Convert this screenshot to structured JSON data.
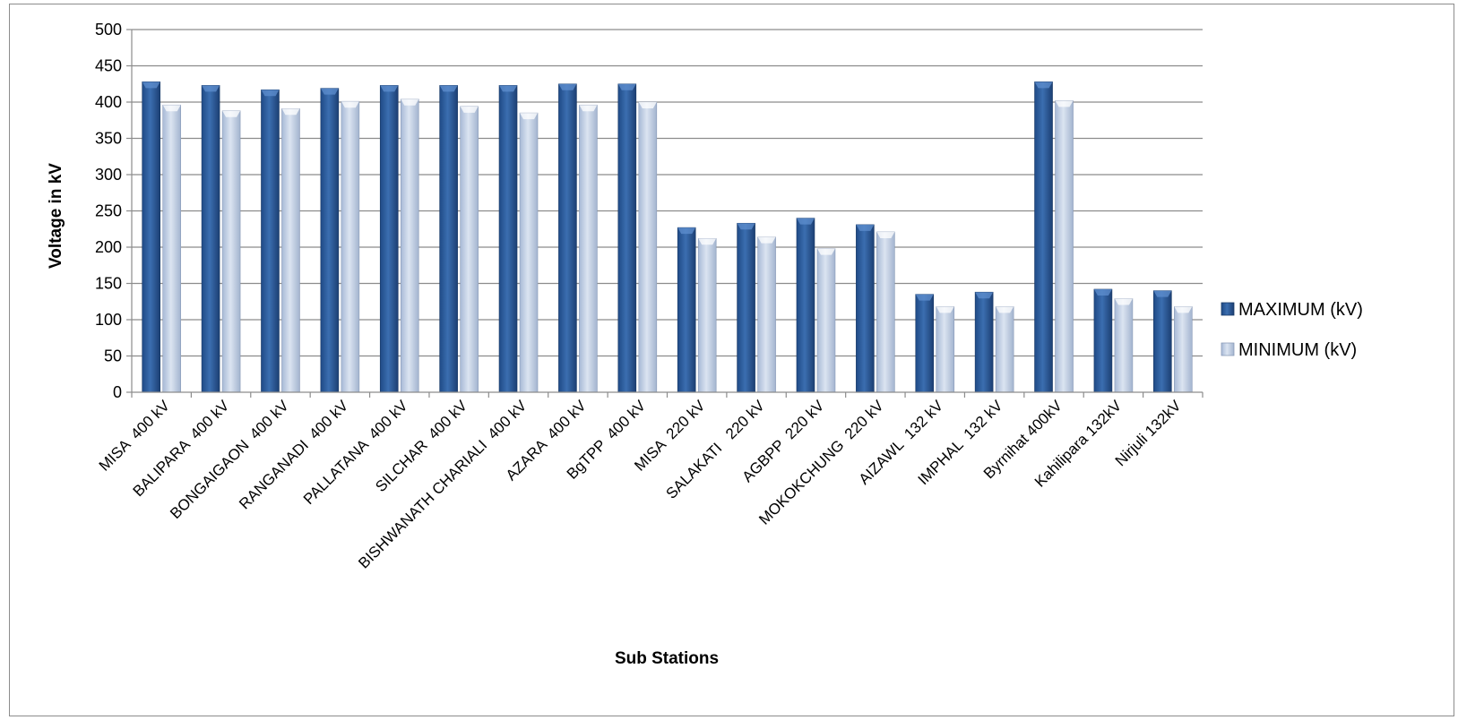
{
  "chart_data": {
    "type": "bar",
    "title": "",
    "xlabel": "Sub Stations",
    "ylabel": "Voltage in kV",
    "ylim": [
      0,
      500
    ],
    "yticks": [
      0,
      50,
      100,
      150,
      200,
      250,
      300,
      350,
      400,
      450,
      500
    ],
    "grid": true,
    "legend_position": "right",
    "categories": [
      "MISA  400 kV",
      "BALIPARA  400 kV",
      "BONGAIGAON  400 kV",
      "RANGANADI  400 kV",
      "PALLATANA  400 kV",
      "SILCHAR  400 kV",
      "BISHWANATH CHARIALI  400 kV",
      "AZARA  400 kV",
      "BgTPP  400 kV",
      "MISA  220 kV",
      "SALAKATI   220 kV",
      "AGBPP  220 kV",
      "MOKOKCHUNG  220 kV",
      "AIZAWL  132 kV",
      "IMPHAL  132 kV",
      "Byrnihat 400kV",
      "Kahilipara 132kV",
      "Nirjuli 132kV"
    ],
    "series": [
      {
        "name": "MAXIMUM (kV)",
        "color": "#2e5c99",
        "values": [
          428,
          423,
          417,
          419,
          423,
          423,
          423,
          425,
          425,
          227,
          233,
          240,
          231,
          135,
          138,
          428,
          142,
          140
        ]
      },
      {
        "name": "MINIMUM (kV)",
        "color": "#b9c9e0",
        "values": [
          396,
          388,
          391,
          401,
          404,
          394,
          385,
          396,
          400,
          212,
          214,
          198,
          221,
          118,
          118,
          402,
          129,
          118
        ]
      }
    ]
  }
}
